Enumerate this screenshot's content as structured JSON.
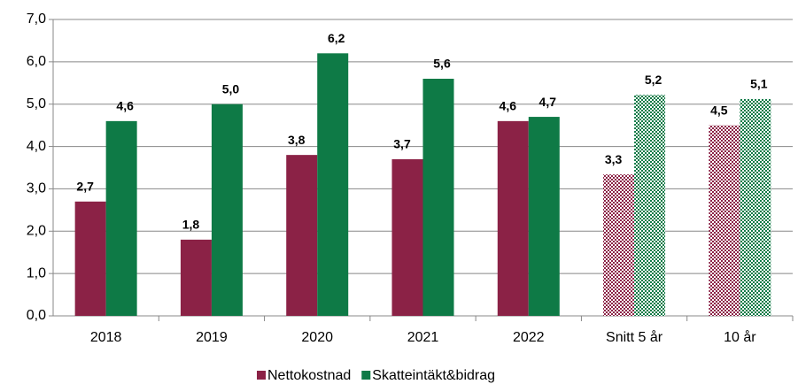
{
  "chart_data": {
    "type": "bar",
    "categories": [
      "2018",
      "2019",
      "2020",
      "2021",
      "2022",
      "Snitt 5 år",
      "10 år"
    ],
    "series": [
      {
        "name": "Nettokostnad",
        "color": "#8b2246",
        "values": [
          2.7,
          1.8,
          3.8,
          3.7,
          4.6,
          3.34,
          4.5
        ],
        "value_labels": [
          "2,7",
          "1,8",
          "3,8",
          "3,7",
          "4,6",
          "3,3",
          "4,5"
        ]
      },
      {
        "name": "Skatteintäkt&bidrag",
        "color": "#0e7a46",
        "values": [
          4.6,
          5.0,
          6.2,
          5.6,
          4.7,
          5.22,
          5.12
        ],
        "value_labels": [
          "4,6",
          "5,0",
          "6,2",
          "5,6",
          "4,7",
          "5,2",
          "5,1"
        ]
      }
    ],
    "patterned": [
      false,
      false,
      false,
      false,
      false,
      true,
      true
    ],
    "ylim": [
      0,
      7
    ],
    "yticks": [
      {
        "value": 0,
        "label": "0,0"
      },
      {
        "value": 1,
        "label": "1,0"
      },
      {
        "value": 2,
        "label": "2,0"
      },
      {
        "value": 3,
        "label": "3,0"
      },
      {
        "value": 4,
        "label": "4,0"
      },
      {
        "value": 5,
        "label": "5,0"
      },
      {
        "value": 6,
        "label": "6,0"
      },
      {
        "value": 7,
        "label": "7,0"
      }
    ],
    "grid": true,
    "legend": "bottom"
  }
}
